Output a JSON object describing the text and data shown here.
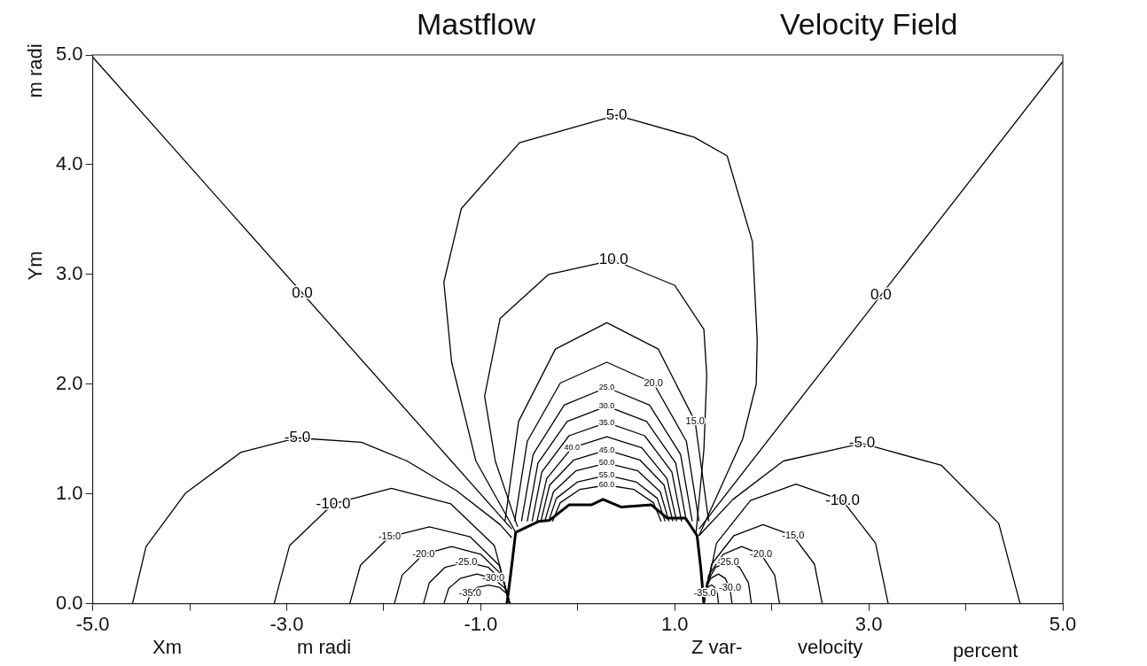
{
  "chart_data": {
    "type": "line",
    "title": "Mastflow",
    "subtitle": "Velocity Field",
    "xlabel": "Xm",
    "ylabel": "Ym",
    "annotations": [
      "m radi",
      "m radi",
      "Z var-",
      "velocity",
      "percent"
    ],
    "xlim": [
      -5,
      5
    ],
    "ylim": [
      0,
      5
    ],
    "xticks": [
      {
        "value": -5,
        "label": "-5.0"
      },
      {
        "value": -4,
        "label": null
      },
      {
        "value": -3,
        "label": "-3.0"
      },
      {
        "value": -2,
        "label": null
      },
      {
        "value": -1,
        "label": "-1.0"
      },
      {
        "value": 0,
        "label": null
      },
      {
        "value": 1,
        "label": "1.0"
      },
      {
        "value": 2,
        "label": null
      },
      {
        "value": 3,
        "label": "3.0"
      },
      {
        "value": 4,
        "label": null
      },
      {
        "value": 5,
        "label": "5.0"
      }
    ],
    "yticks": [
      {
        "value": 0,
        "label": "0.0"
      },
      {
        "value": 1,
        "label": "1.0"
      },
      {
        "value": 2,
        "label": "2.0"
      },
      {
        "value": 3,
        "label": "3.0"
      },
      {
        "value": 4,
        "label": "4.0"
      },
      {
        "value": 5,
        "label": "5.0"
      }
    ],
    "grid": false,
    "legend": false,
    "series": [
      {
        "color": "#000000",
        "x": [
          -0.73,
          -0.68,
          -0.64,
          -0.4,
          -0.29,
          -0.09,
          0.14,
          0.26,
          0.45,
          0.76,
          0.92,
          1.11,
          1.23,
          1.27,
          1.3
        ],
        "values": [
          0,
          0.35,
          0.65,
          0.75,
          0.76,
          0.9,
          0.9,
          0.95,
          0.88,
          0.9,
          0.78,
          0.78,
          0.62,
          0.31,
          0
        ]
      },
      {
        "name": "0.0",
        "color": "#000000",
        "x": [
          -5,
          -0.68
        ],
        "values": [
          4.98,
          0.68
        ]
      },
      {
        "name": "0.0",
        "color": "#000000",
        "x": [
          1.25,
          5
        ],
        "values": [
          0.68,
          4.94
        ]
      },
      {
        "name": "-5.0",
        "color": "#000000",
        "x": [
          -4.59,
          -4.45,
          -4.04,
          -3.47,
          -2.89,
          -2.23,
          -1.76,
          -1.25,
          -0.8,
          -0.68
        ],
        "values": [
          0,
          0.52,
          1.01,
          1.38,
          1.51,
          1.47,
          1.3,
          1.03,
          0.72,
          0.6
        ]
      },
      {
        "name": "-10.0",
        "color": "#000000",
        "x": [
          -3.13,
          -2.97,
          -2.52,
          -1.92,
          -1.31,
          -0.86,
          -0.7
        ],
        "values": [
          0,
          0.53,
          0.91,
          1.05,
          0.91,
          0.53,
          0
        ]
      },
      {
        "name": "-15.0",
        "color": "#000000",
        "x": [
          -2.35,
          -2.24,
          -1.94,
          -1.53,
          -1.11,
          -0.81,
          -0.7
        ],
        "values": [
          0,
          0.35,
          0.61,
          0.7,
          0.61,
          0.35,
          0
        ]
      },
      {
        "name": "-20.0",
        "color": "#000000",
        "x": [
          -1.89,
          -1.81,
          -1.59,
          -1.3,
          -1.0,
          -0.78,
          -0.7
        ],
        "values": [
          0,
          0.26,
          0.45,
          0.52,
          0.45,
          0.26,
          0
        ]
      },
      {
        "name": "-25.0",
        "color": "#000000",
        "x": [
          -1.59,
          -1.53,
          -1.37,
          -1.15,
          -0.92,
          -0.76,
          -0.7
        ],
        "values": [
          0,
          0.19,
          0.33,
          0.38,
          0.33,
          0.19,
          0
        ]
      },
      {
        "name": "-30.0",
        "color": "#000000",
        "x": [
          -1.38,
          -1.33,
          -1.21,
          -1.04,
          -0.87,
          -0.75,
          -0.7
        ],
        "values": [
          0,
          0.14,
          0.23,
          0.27,
          0.23,
          0.14,
          0
        ]
      },
      {
        "name": "-35.0",
        "color": "#000000",
        "x": [
          -1.14,
          -1.11,
          -1.03,
          -0.92,
          -0.81,
          -0.73,
          -0.7
        ],
        "values": [
          0,
          0.09,
          0.15,
          0.17,
          0.15,
          0.09,
          0
        ]
      },
      {
        "name": "-5.0",
        "color": "#000000",
        "x": [
          1.25,
          1.6,
          2.12,
          2.93,
          3.75,
          4.34,
          4.56
        ],
        "values": [
          0.62,
          0.95,
          1.3,
          1.46,
          1.26,
          0.73,
          0
        ]
      },
      {
        "name": "-10.0",
        "color": "#000000",
        "x": [
          1.3,
          1.43,
          1.78,
          2.25,
          2.73,
          3.07,
          3.2
        ],
        "values": [
          0,
          0.55,
          0.94,
          1.09,
          0.94,
          0.55,
          0
        ]
      },
      {
        "name": "-15.0",
        "color": "#000000",
        "x": [
          1.3,
          1.38,
          1.61,
          1.91,
          2.22,
          2.44,
          2.52
        ],
        "values": [
          0,
          0.36,
          0.62,
          0.72,
          0.62,
          0.36,
          0
        ]
      },
      {
        "name": "-20.0",
        "color": "#000000",
        "x": [
          1.3,
          1.35,
          1.5,
          1.69,
          1.89,
          2.03,
          2.08
        ],
        "values": [
          0,
          0.26,
          0.45,
          0.52,
          0.45,
          0.26,
          0
        ]
      },
      {
        "name": "-25.0",
        "color": "#000000",
        "x": [
          1.3,
          1.33,
          1.42,
          1.55,
          1.67,
          1.76,
          1.79
        ],
        "values": [
          0,
          0.19,
          0.33,
          0.38,
          0.33,
          0.19,
          0
        ]
      },
      {
        "name": "-30.0",
        "color": "#000000",
        "x": [
          1.3,
          1.32,
          1.37,
          1.45,
          1.52,
          1.57,
          1.59
        ],
        "values": [
          0,
          0.14,
          0.23,
          0.27,
          0.23,
          0.14,
          0
        ]
      },
      {
        "name": "-35.0",
        "color": "#000000",
        "x": [
          1.3,
          1.31,
          1.34,
          1.38,
          1.41,
          1.44,
          1.45
        ],
        "values": [
          0,
          0.09,
          0.15,
          0.17,
          0.15,
          0.09,
          0
        ]
      },
      {
        "name": "5.0",
        "color": "#000000",
        "x": [
          -0.64,
          -1.05,
          -1.3,
          -1.38,
          -1.2,
          -0.6,
          0.4,
          1.2,
          1.54,
          1.8,
          1.85,
          1.84,
          1.7,
          1.25
        ],
        "values": [
          0.65,
          1.3,
          2.2,
          2.93,
          3.6,
          4.2,
          4.45,
          4.25,
          4.08,
          3.3,
          2.4,
          2.0,
          1.5,
          0.62
        ]
      },
      {
        "name": "10.0",
        "color": "#000000",
        "x": [
          -0.62,
          -0.85,
          -0.96,
          -0.8,
          -0.3,
          0.37,
          1.0,
          1.3,
          1.33,
          1.3,
          1.22
        ],
        "values": [
          0.7,
          1.3,
          1.89,
          2.6,
          3.0,
          3.13,
          2.9,
          2.5,
          2.08,
          1.4,
          0.65
        ]
      },
      {
        "name": "15.0",
        "color": "#000000",
        "x": [
          -0.75,
          -0.61,
          -0.23,
          0.3,
          0.83,
          1.21,
          1.35
        ],
        "values": [
          0.75,
          1.66,
          2.32,
          2.56,
          2.32,
          1.66,
          0.75
        ]
      },
      {
        "name": "20.0",
        "color": "#000000",
        "x": [
          -0.65,
          -0.52,
          -0.18,
          0.3,
          0.78,
          1.12,
          1.25
        ],
        "values": [
          0.75,
          1.48,
          2.01,
          2.2,
          2.01,
          1.48,
          0.75
        ]
      },
      {
        "name": "25.0",
        "color": "#000000",
        "x": [
          -0.58,
          -0.46,
          -0.14,
          0.3,
          0.74,
          1.06,
          1.18
        ],
        "values": [
          0.75,
          1.36,
          1.81,
          1.97,
          1.81,
          1.36,
          0.75
        ]
      },
      {
        "name": "30.0",
        "color": "#000000",
        "x": [
          -0.52,
          -0.41,
          -0.11,
          0.3,
          0.71,
          1.01,
          1.12
        ],
        "values": [
          0.75,
          1.28,
          1.66,
          1.8,
          1.66,
          1.28,
          0.75
        ]
      },
      {
        "name": "35.0",
        "color": "#000000",
        "x": [
          -0.47,
          -0.37,
          -0.09,
          0.3,
          0.69,
          0.97,
          1.07
        ],
        "values": [
          0.75,
          1.2,
          1.53,
          1.65,
          1.53,
          1.2,
          0.75
        ]
      },
      {
        "name": "40.0",
        "color": "#000000",
        "x": [
          -0.42,
          -0.32,
          -0.06,
          0.3,
          0.66,
          0.92,
          1.02
        ],
        "values": [
          0.75,
          1.14,
          1.42,
          1.52,
          1.42,
          1.14,
          0.75
        ]
      },
      {
        "name": "45.0",
        "color": "#000000",
        "x": [
          -0.38,
          -0.29,
          -0.04,
          0.3,
          0.64,
          0.89,
          0.98
        ],
        "values": [
          0.75,
          1.08,
          1.31,
          1.4,
          1.31,
          1.08,
          0.75
        ]
      },
      {
        "name": "50.0",
        "color": "#000000",
        "x": [
          -0.34,
          -0.25,
          -0.02,
          0.3,
          0.62,
          0.85,
          0.94
        ],
        "values": [
          0.75,
          1.02,
          1.21,
          1.28,
          1.21,
          1.02,
          0.75
        ]
      },
      {
        "name": "55.0",
        "color": "#000000",
        "x": [
          -0.3,
          -0.22,
          0.0,
          0.3,
          0.6,
          0.82,
          0.9
        ],
        "values": [
          0.75,
          0.96,
          1.11,
          1.17,
          1.11,
          0.96,
          0.75
        ]
      },
      {
        "name": "60.0",
        "color": "#000000",
        "x": [
          -0.26,
          -0.18,
          0.02,
          0.3,
          0.58,
          0.78,
          0.86
        ],
        "values": [
          0.75,
          0.92,
          1.04,
          1.08,
          1.04,
          0.92,
          0.75
        ]
      }
    ]
  }
}
